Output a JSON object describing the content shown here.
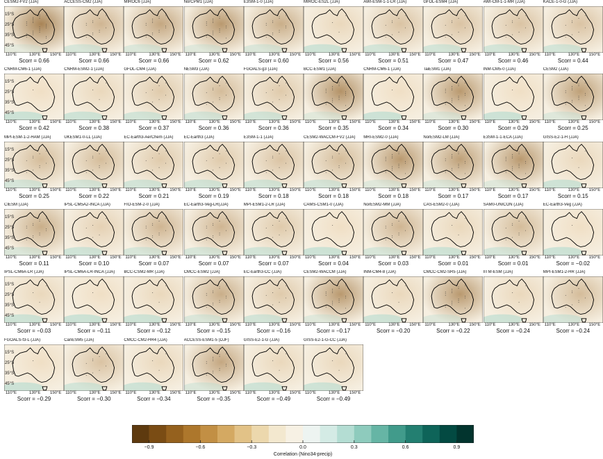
{
  "lat_labels": [
    "15°S",
    "25°S",
    "35°S",
    "45°S"
  ],
  "lon_labels": [
    "110°E",
    "130°E",
    "150°E"
  ],
  "score_prefix": "Scorr = ",
  "panels": [
    {
      "name": "CESM2-FV2 (JJA)",
      "score": "0.66",
      "w": 0.7
    },
    {
      "name": "ACCESS-CM2 (JJA)",
      "score": "0.66",
      "w": 0.35
    },
    {
      "name": "MIROC6 (JJA)",
      "score": "0.66",
      "w": 0.45
    },
    {
      "name": "NorCPM1 (JJA)",
      "score": "0.62",
      "w": 0.55
    },
    {
      "name": "E3SM-1-0 (JJA)",
      "score": "0.60",
      "w": 0.4
    },
    {
      "name": "MIROC-ES2L (JJA)",
      "score": "0.56",
      "w": 0.1
    },
    {
      "name": "AWI-ESM-1-1-LR (JJA)",
      "score": "0.51",
      "w": 0.25
    },
    {
      "name": "GFDL-ESM4 (JJA)",
      "score": "0.47",
      "w": 0.25
    },
    {
      "name": "AWI-CM-1-1-MR (JJA)",
      "score": "0.46",
      "w": 0.25
    },
    {
      "name": "KACE-1-0-G (JJA)",
      "score": "0.44",
      "w": 0.25
    },
    {
      "name": "CNRM-CM6-1 (JJA)",
      "score": "0.42",
      "w": 0.05
    },
    {
      "name": "CNRM-ESM2-1 (JJA)",
      "score": "0.38",
      "w": 0.1
    },
    {
      "name": "GFDL-CM4 (JJA)",
      "score": "0.37",
      "w": 0.2
    },
    {
      "name": "NESM3 (JJA)",
      "score": "0.36",
      "w": 0.3
    },
    {
      "name": "FGOALS-g3 (JJA)",
      "score": "0.36",
      "w": 0.2
    },
    {
      "name": "BCC-ESM1 (JJA)",
      "score": "0.35",
      "w": 0.6
    },
    {
      "name": "CNRM-CM6-1 (JJA)",
      "score": "0.34",
      "w": 0.05
    },
    {
      "name": "TaiESM1 (JJA)",
      "score": "0.30",
      "w": 0.55
    },
    {
      "name": "INM-CM5-0 (JJA)",
      "score": "0.29",
      "w": 0.05
    },
    {
      "name": "CESM2 (JJA)",
      "score": "0.25",
      "w": 0.5
    },
    {
      "name": "MPI-ESM-1-2-HAM (JJA)",
      "score": "0.25",
      "w": 0.3
    },
    {
      "name": "UKESM1-0-LL (JJA)",
      "score": "0.22",
      "w": 0.3
    },
    {
      "name": "EC-Earth3-AerChem (JJA)",
      "score": "0.21",
      "w": 0.2
    },
    {
      "name": "EC-Earth3 (JJA)",
      "score": "0.19",
      "w": 0.2
    },
    {
      "name": "E3SM-1-1 (JJA)",
      "score": "0.18",
      "w": 0.25
    },
    {
      "name": "CESM2-WACCM-FV2 (JJA)",
      "score": "0.18",
      "w": 0.3
    },
    {
      "name": "MRI-ESM2-0 (JJA)",
      "score": "0.18",
      "w": 0.55
    },
    {
      "name": "NorESM2-LM (JJA)",
      "score": "0.17",
      "w": 0.5
    },
    {
      "name": "E3SM-1-1-ECA (JJA)",
      "score": "0.17",
      "w": 0.55
    },
    {
      "name": "GISS-E2-1-H (JJA)",
      "score": "0.15",
      "w": 0.1
    },
    {
      "name": "CIESM (JJA)",
      "score": "0.11",
      "w": 0.4
    },
    {
      "name": "IPSL-CM5A2-INCA (JJA)",
      "score": "0.10",
      "w": 0.15
    },
    {
      "name": "FIO-ESM-2-0 (JJA)",
      "score": "0.07",
      "w": 0.35
    },
    {
      "name": "EC-Earth3-Veg-LR(JJA)",
      "score": "0.07",
      "w": 0.35
    },
    {
      "name": "MPI-ESM1-2-LR (JJA)",
      "score": "0.07",
      "w": 0.2
    },
    {
      "name": "CAMS-CSM1-0 (JJA)",
      "score": "0.04",
      "w": 0.05
    },
    {
      "name": "NorESM2-MM (JJA)",
      "score": "0.03",
      "w": 0.35
    },
    {
      "name": "CAS-ESM2-0 (JJA)",
      "score": "0.01",
      "w": 0.1
    },
    {
      "name": "SAM0-UNICON (JJA)",
      "score": "0.01",
      "w": 0.3
    },
    {
      "name": "EC-Earth3-Veg (JJA)",
      "score": "−0.02",
      "w": 0.05
    },
    {
      "name": "IPSL-CM6A-LR (JJA)",
      "score": "−0.03",
      "w": 0.1
    },
    {
      "name": "IPSL-CM6A-LR-INCA (JJA)",
      "score": "−0.11",
      "w": 0.05
    },
    {
      "name": "BCC-CSM2-MR (JJA)",
      "score": "−0.12",
      "w": 0.1
    },
    {
      "name": "CMCC-ESM2 (JJA)",
      "score": "−0.15",
      "w": 0.4
    },
    {
      "name": "EC-Earth3-CC (JJA)",
      "score": "−0.16",
      "w": 0.2
    },
    {
      "name": "CESM2-WACCM (JJA)",
      "score": "−0.17",
      "w": 0.55
    },
    {
      "name": "INM-CM4-8 (JJA)",
      "score": "−0.20",
      "w": 0.1
    },
    {
      "name": "CMCC-CM2-SR5 (JJA)",
      "score": "−0.22",
      "w": 0.55
    },
    {
      "name": "IITM-ESM (JJA)",
      "score": "−0.24",
      "w": 0.1
    },
    {
      "name": "MPI-ESM1-2-HR (JJA)",
      "score": "−0.24",
      "w": 0.3
    },
    {
      "name": "FGOALS-f3-L (JJA)",
      "score": "−0.29",
      "w": 0.05
    },
    {
      "name": "CanESM5 (JJA)",
      "score": "−0.30",
      "w": 0.25
    },
    {
      "name": "CMCC-CM2-HR4 (JJA)",
      "score": "−0.34",
      "w": 0.1
    },
    {
      "name": "ACCESS-ESM1-5 (DJF)",
      "score": "−0.35",
      "w": 0.45
    },
    {
      "name": "GISS-E2-1-G (JJA)",
      "score": "−0.49",
      "w": 0.1
    },
    {
      "name": "GISS-E2-1-G-CC (JJA)",
      "score": "−0.49",
      "w": 0.1
    }
  ],
  "colorbar": {
    "label": "Correlation (Nino34-precip)",
    "ticks": [
      "−0.9",
      "−0.6",
      "−0.3",
      "0.0",
      "0.3",
      "0.6",
      "0.9"
    ],
    "colors": [
      "#5e3a0f",
      "#7a4c14",
      "#95611e",
      "#ad772c",
      "#c28f44",
      "#d4a962",
      "#e2c287",
      "#ecd8ad",
      "#f3e8cf",
      "#f7f1e4",
      "#edf4f1",
      "#d4ebe5",
      "#b4ddd3",
      "#8ecbbd",
      "#66b5a5",
      "#419b8b",
      "#237f71",
      "#0e6459",
      "#034a42",
      "#02342e"
    ]
  }
}
